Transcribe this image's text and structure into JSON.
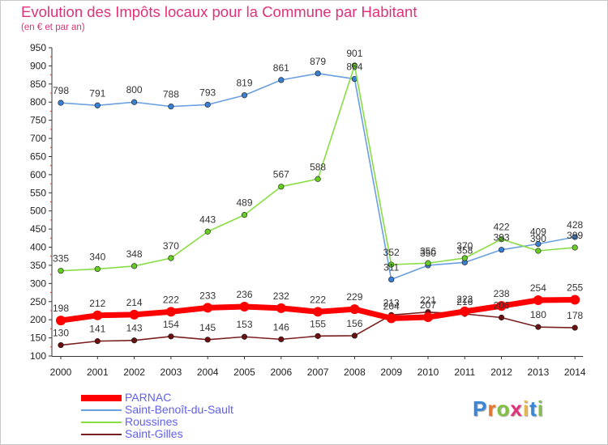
{
  "header": {
    "title": "Evolution des Impôts locaux pour la Commune par Habitant",
    "subtitle": "(en € et par an)"
  },
  "brand": {
    "logo_text": "Proxiti",
    "letter_colors": [
      "#3a86d6",
      "#e8752a",
      "#7fc241",
      "#e0317a",
      "#f2b531",
      "#3a86d6",
      "#7fc241"
    ]
  },
  "legend": {
    "items": [
      {
        "label": "PARNAC",
        "color": "#ff0000"
      },
      {
        "label": "Saint-Benoît-du-Sault",
        "color": "#6a9fe0"
      },
      {
        "label": "Roussines",
        "color": "#88dd44"
      },
      {
        "label": "Saint-Gilles",
        "color": "#7a1f1f"
      }
    ]
  },
  "chart_data": {
    "type": "line",
    "title": "Evolution des Impôts locaux pour la Commune par Habitant",
    "subtitle": "(en € et par an)",
    "xlabel": "",
    "ylabel": "",
    "grid": false,
    "legend_position": "bottom-left",
    "categories": [
      "2000",
      "2001",
      "2002",
      "2003",
      "2004",
      "2005",
      "2006",
      "2007",
      "2008",
      "2009",
      "2010",
      "2011",
      "2012",
      "2013",
      "2014"
    ],
    "yticks": [
      100,
      150,
      200,
      250,
      300,
      350,
      400,
      450,
      500,
      550,
      600,
      650,
      700,
      750,
      800,
      850,
      900,
      950
    ],
    "ylim": [
      100,
      950
    ],
    "series": [
      {
        "name": "Saint-Benoît-du-Sault",
        "color": "#6a9fe0",
        "marker": "#3a7fd0",
        "values": [
          798,
          791,
          800,
          788,
          793,
          819,
          861,
          879,
          864,
          311,
          350,
          358,
          393,
          409,
          428
        ]
      },
      {
        "name": "Roussines",
        "color": "#88dd44",
        "marker": "#66cc22",
        "values": [
          335,
          340,
          348,
          370,
          443,
          489,
          567,
          588,
          901,
          352,
          356,
          370,
          422,
          390,
          399
        ]
      },
      {
        "name": "Saint-Gilles",
        "color": "#7a1f1f",
        "marker": "#6a1010",
        "values": [
          130,
          141,
          143,
          154,
          145,
          153,
          146,
          155,
          156,
          213,
          221,
          216,
          206,
          180,
          178
        ]
      },
      {
        "name": "PARNAC",
        "color": "#ff0000",
        "marker": "#ff0000",
        "values": [
          198,
          212,
          214,
          222,
          233,
          236,
          232,
          222,
          229,
          204,
          207,
          223,
          238,
          254,
          255
        ]
      }
    ]
  }
}
